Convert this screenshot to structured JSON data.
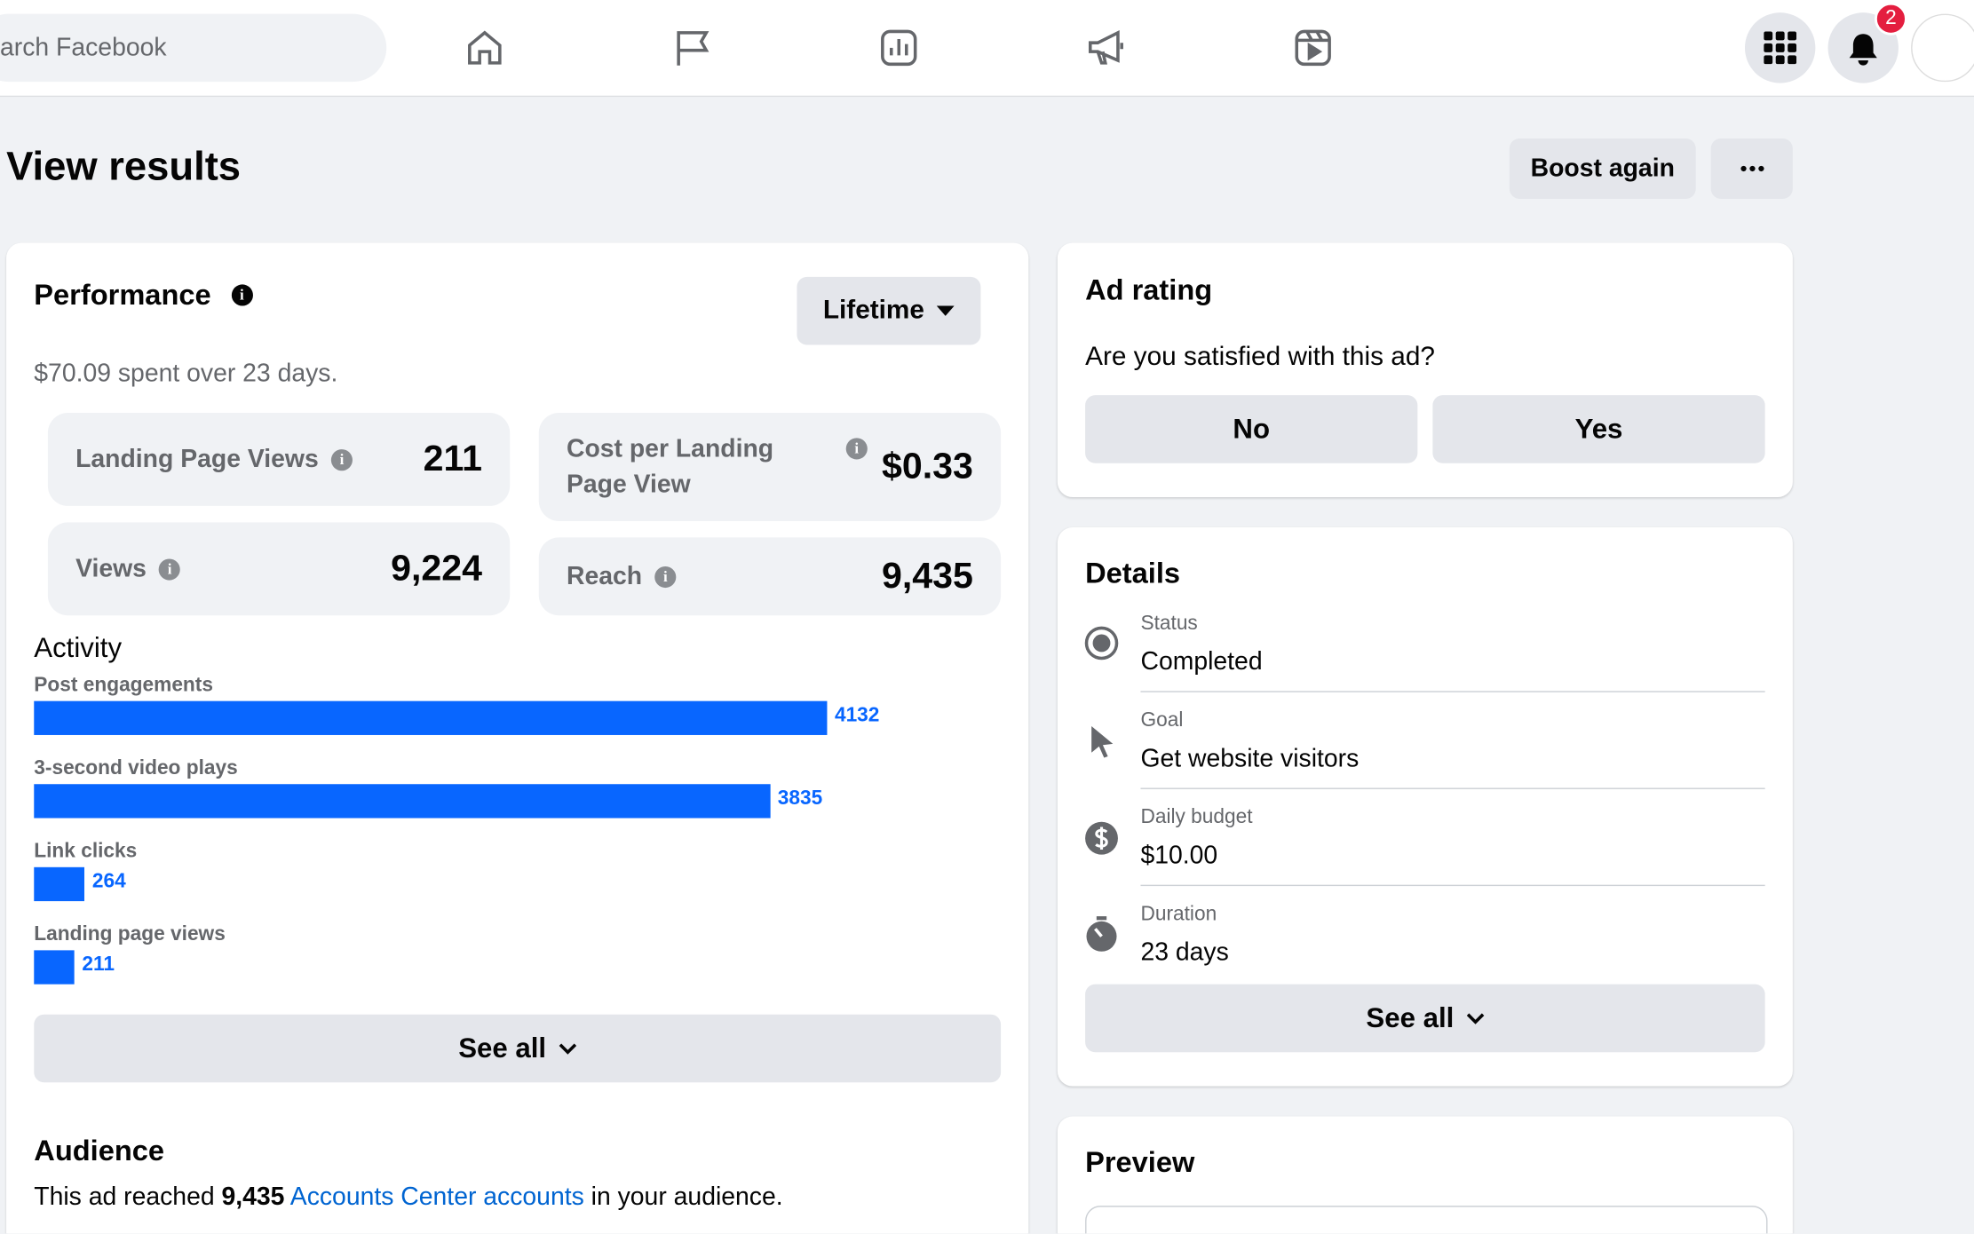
{
  "nav": {
    "search_placeholder": "arch Facebook",
    "notification_count": "2"
  },
  "header": {
    "title": "View results",
    "boost_button": "Boost again"
  },
  "performance": {
    "title": "Performance",
    "period": "Lifetime",
    "summary": "$70.09 spent over 23 days.",
    "metrics": [
      {
        "label": "Landing Page Views",
        "value": "211"
      },
      {
        "label": "Cost per Landing Page View",
        "value": "$0.33"
      },
      {
        "label": "Views",
        "value": "9,224"
      },
      {
        "label": "Reach",
        "value": "9,435"
      }
    ]
  },
  "activity": {
    "title": "Activity",
    "items": [
      {
        "label": "Post engagements",
        "value": 4132
      },
      {
        "label": "3-second video plays",
        "value": 3835
      },
      {
        "label": "Link clicks",
        "value": 264
      },
      {
        "label": "Landing page views",
        "value": 211
      }
    ],
    "see_all": "See all"
  },
  "audience": {
    "title": "Audience",
    "text_before": "This ad reached",
    "reach": "9,435",
    "link": "Accounts Center accounts",
    "text_after": "in your audience."
  },
  "ad_rating": {
    "title": "Ad rating",
    "question": "Are you satisfied with this ad?",
    "no": "No",
    "yes": "Yes"
  },
  "details": {
    "title": "Details",
    "rows": [
      {
        "label": "Status",
        "value": "Completed"
      },
      {
        "label": "Goal",
        "value": "Get website visitors"
      },
      {
        "label": "Daily budget",
        "value": "$10.00"
      },
      {
        "label": "Duration",
        "value": "23 days"
      }
    ],
    "see_all": "See all"
  },
  "preview": {
    "title": "Preview"
  }
}
